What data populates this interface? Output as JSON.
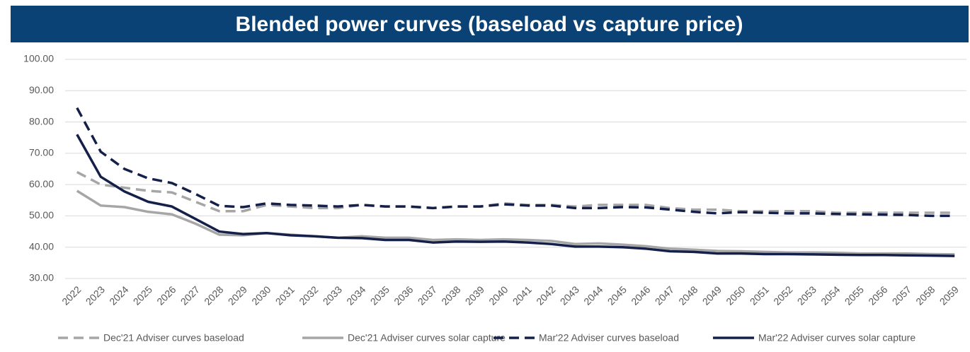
{
  "chart_data": {
    "type": "line",
    "title": "Blended power curves (baseload vs capture price)",
    "categories": [
      "2022",
      "2023",
      "2024",
      "2025",
      "2026",
      "2027",
      "2028",
      "2029",
      "2030",
      "2031",
      "2032",
      "2033",
      "2034",
      "2035",
      "2036",
      "2037",
      "2038",
      "2039",
      "2040",
      "2041",
      "2042",
      "2043",
      "2044",
      "2045",
      "2046",
      "2047",
      "2048",
      "2049",
      "2050",
      "2051",
      "2052",
      "2053",
      "2054",
      "2055",
      "2056",
      "2057",
      "2058",
      "2059"
    ],
    "series": [
      {
        "name": "Dec'21 Adviser curves baseload",
        "color": "#a6a6a6",
        "dashed": true,
        "values": [
          64,
          60,
          59,
          58,
          57.5,
          54.5,
          51.5,
          51.5,
          53.5,
          53,
          52.5,
          52.5,
          53.5,
          53,
          53,
          52.5,
          53,
          53,
          54,
          53.5,
          53.5,
          53,
          53.5,
          53.5,
          53.5,
          52.5,
          52,
          52,
          51.5,
          51.5,
          51.5,
          51.5,
          51,
          51,
          51,
          51,
          51,
          51
        ]
      },
      {
        "name": "Dec'21 Adviser curves solar capture",
        "color": "#a6a6a6",
        "dashed": false,
        "values": [
          58,
          53.3,
          52.8,
          51.3,
          50.5,
          47.5,
          44,
          43.8,
          44.5,
          44,
          43.5,
          43,
          43.5,
          43,
          43,
          42.3,
          42.5,
          42.3,
          42.5,
          42.3,
          42,
          41,
          41.2,
          40.8,
          40.3,
          39.5,
          39.2,
          38.8,
          38.7,
          38.5,
          38.3,
          38.3,
          38.2,
          38,
          38,
          38,
          37.8,
          37.7
        ]
      },
      {
        "name": "Mar'22 Adviser curves baseload",
        "color": "#14204a",
        "dashed": true,
        "values": [
          84.5,
          70.5,
          65,
          62,
          60.5,
          57,
          53.2,
          52.8,
          54,
          53.5,
          53.3,
          53,
          53.5,
          53,
          53,
          52.5,
          53,
          53,
          53.7,
          53.3,
          53.3,
          52.5,
          52.5,
          52.8,
          52.7,
          52,
          51.3,
          50.8,
          51.2,
          51,
          50.8,
          50.8,
          50.6,
          50.5,
          50.4,
          50.3,
          50,
          50
        ]
      },
      {
        "name": "Mar'22 Adviser curves solar capture",
        "color": "#14204a",
        "dashed": false,
        "values": [
          76,
          62.5,
          57.8,
          54.5,
          53,
          49,
          45,
          44.2,
          44.5,
          43.8,
          43.5,
          43,
          42.9,
          42.3,
          42.3,
          41.5,
          41.8,
          41.7,
          41.8,
          41.5,
          41,
          40.2,
          40.2,
          40,
          39.5,
          38.7,
          38.5,
          38,
          38,
          37.8,
          37.8,
          37.7,
          37.6,
          37.5,
          37.5,
          37.4,
          37.3,
          37.2
        ]
      }
    ],
    "ylim": [
      30,
      100
    ],
    "yticks": [
      {
        "value": 30,
        "label": "30.00"
      },
      {
        "value": 40,
        "label": "40.00"
      },
      {
        "value": 50,
        "label": "50.00"
      },
      {
        "value": 60,
        "label": "60.00"
      },
      {
        "value": 70,
        "label": "70.00"
      },
      {
        "value": 80,
        "label": "80.00"
      },
      {
        "value": 90,
        "label": "90.00"
      },
      {
        "value": 100,
        "label": "100.00"
      }
    ],
    "grid": true,
    "legend": "bottom"
  }
}
